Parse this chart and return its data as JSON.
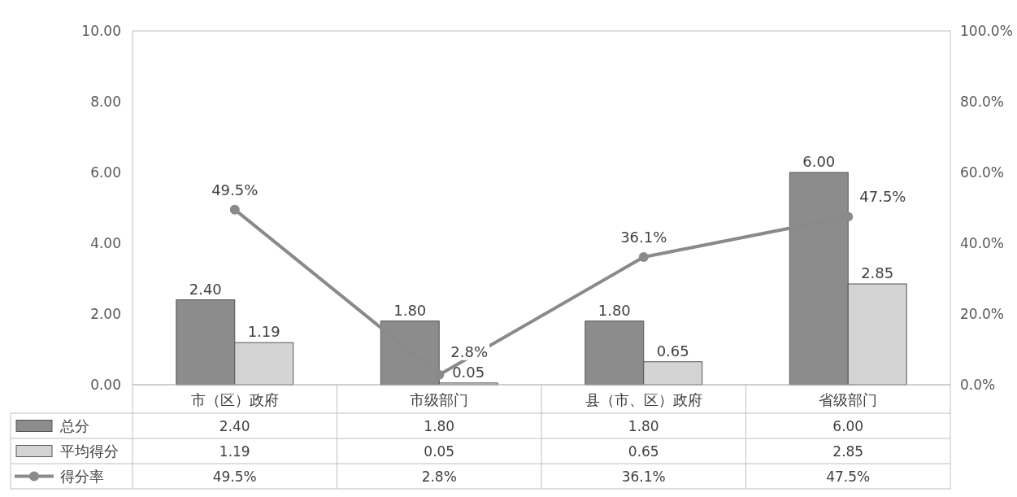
{
  "chart_data": {
    "type": "bar",
    "categories": [
      "市（区）政府",
      "市级部门",
      "县（市、区）政府",
      "省级部门"
    ],
    "series": [
      {
        "name": "总分",
        "color": "#8c8c8c",
        "values": [
          2.4,
          1.8,
          1.8,
          6.0
        ],
        "value_labels": [
          "2.40",
          "1.80",
          "1.80",
          "6.00"
        ]
      },
      {
        "name": "平均得分",
        "color": "#d4d4d4",
        "values": [
          1.19,
          0.05,
          0.65,
          2.85
        ],
        "value_labels": [
          "1.19",
          "0.05",
          "0.65",
          "2.85"
        ]
      },
      {
        "name": "得分率",
        "type": "line",
        "axis": "y2",
        "color": "#8a8a8a",
        "values": [
          49.5,
          2.8,
          36.1,
          47.5
        ],
        "value_labels": [
          "49.5%",
          "2.8%",
          "36.1%",
          "47.5%"
        ]
      }
    ],
    "ylim": [
      0,
      10
    ],
    "yticks": [
      {
        "value": 0,
        "label": "0.00"
      },
      {
        "value": 2,
        "label": "2.00"
      },
      {
        "value": 4,
        "label": "4.00"
      },
      {
        "value": 6,
        "label": "6.00"
      },
      {
        "value": 8,
        "label": "8.00"
      },
      {
        "value": 10,
        "label": "10.00"
      }
    ],
    "y2lim": [
      0,
      100
    ],
    "y2ticks": [
      {
        "value": 0,
        "label": "0.0%"
      },
      {
        "value": 20,
        "label": "20.0%"
      },
      {
        "value": 40,
        "label": "40.0%"
      },
      {
        "value": 60,
        "label": "60.0%"
      },
      {
        "value": 80,
        "label": "80.0%"
      },
      {
        "value": 100,
        "label": "100.0%"
      }
    ],
    "marker": "circle",
    "data_labels": true,
    "legend": "bottom left",
    "grid": false
  }
}
